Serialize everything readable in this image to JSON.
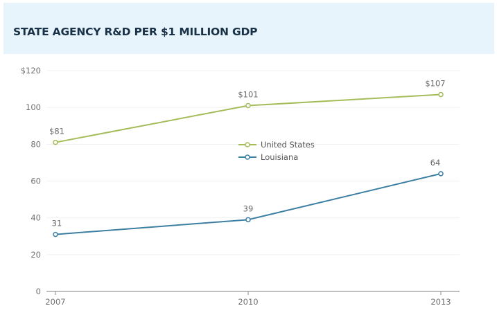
{
  "header": {
    "title": "STATE AGENCY R&D PER $1 MILLION GDP"
  },
  "colors": {
    "header_bg": "#e8f4fc",
    "title": "#1a3247",
    "united_states": "#a4bd5a",
    "louisiana": "#3d7fa3",
    "axis": "#bfbfbf",
    "grid": "#f0f0f0"
  },
  "chart_data": {
    "type": "line",
    "title": "STATE AGENCY R&D PER $1 MILLION GDP",
    "xlabel": "",
    "ylabel": "",
    "x": [
      "2007",
      "2010",
      "2013"
    ],
    "ylim": [
      0,
      120
    ],
    "yticks": [
      0,
      20,
      40,
      60,
      80,
      100,
      120
    ],
    "ytick_labels": [
      "0",
      "20",
      "40",
      "60",
      "80",
      "100",
      "$120"
    ],
    "grid": true,
    "legend_placement": "center",
    "series": [
      {
        "name": "United States",
        "values": [
          81,
          101,
          107
        ],
        "data_labels": [
          "$81",
          "$101",
          "$107"
        ],
        "color": "#a4bd5a"
      },
      {
        "name": "Louisiana",
        "values": [
          31,
          39,
          64
        ],
        "data_labels": [
          "31",
          "39",
          "64"
        ],
        "color": "#3d7fa3"
      }
    ]
  }
}
